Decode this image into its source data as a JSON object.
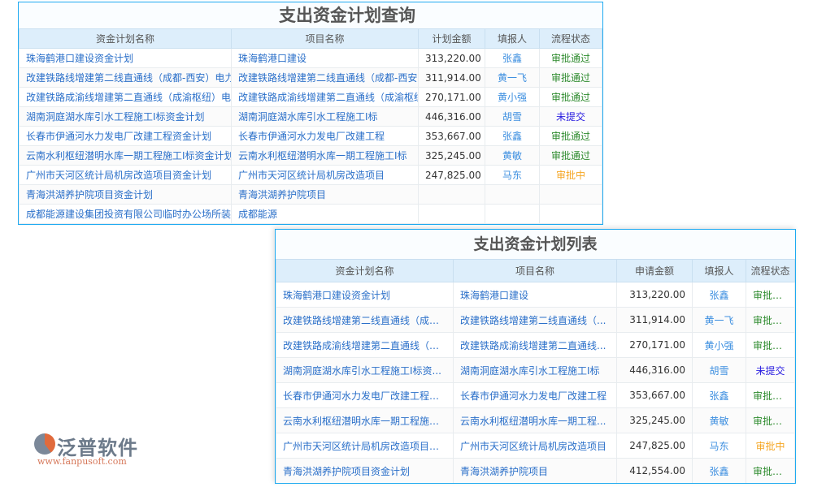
{
  "colors": {
    "border": "#1eaaf1",
    "header_bg": "#ddeefb",
    "link": "#2a6fc9",
    "approved": "#2e8b2e",
    "not_submitted": "#2a1ee0",
    "pending": "#f5a623"
  },
  "query": {
    "title": "支出资金计划查询",
    "columns": [
      "资金计划名称",
      "项目名称",
      "计划金额",
      "填报人",
      "流程状态"
    ],
    "rows": [
      [
        "珠海鹤港口建设资金计划",
        "珠海鹤港口建设",
        "313,220.00",
        "张鑫",
        "审批通过"
      ],
      [
        "改建铁路线增建第二线直通线（成都-西安）电力",
        "改建铁路线增建第二线直通线（成都-西安）",
        "311,914.00",
        "黄一飞",
        "审批通过"
      ],
      [
        "改建铁路成渝线增建第二直通线（成渝枢纽）电",
        "改建铁路成渝线增建第二直通线（成渝枢纽）",
        "270,171.00",
        "黄小强",
        "审批通过"
      ],
      [
        "湖南洞庭湖水库引水工程施工I标资金计划",
        "湖南洞庭湖水库引水工程施工I标",
        "446,316.00",
        "胡雪",
        "未提交"
      ],
      [
        "长春市伊通河水力发电厂改建工程资金计划",
        "长春市伊通河水力发电厂改建工程",
        "353,667.00",
        "张鑫",
        "审批通过"
      ],
      [
        "云南水利枢纽潜明水库一期工程施工I标资金计划",
        "云南水利枢纽潜明水库一期工程施工I标",
        "325,245.00",
        "黄敏",
        "审批通过"
      ],
      [
        "广州市天河区统计局机房改造项目资金计划",
        "广州市天河区统计局机房改造项目",
        "247,825.00",
        "马东",
        "审批中"
      ],
      [
        "青海洪湖养护院项目资金计划",
        "青海洪湖养护院项目",
        "",
        "",
        ""
      ],
      [
        "成都能源建设集团投资有限公司临时办公场所装",
        "成都能源",
        "",
        "",
        ""
      ]
    ]
  },
  "list": {
    "title": "支出资金计划列表",
    "columns": [
      "资金计划名称",
      "项目名称",
      "申请金额",
      "填报人",
      "流程状态"
    ],
    "rows": [
      [
        "珠海鹤港口建设资金计划",
        "珠海鹤港口建设",
        "313,220.00",
        "张鑫",
        "审批通过"
      ],
      [
        "改建铁路线增建第二线直通线（成都...",
        "改建铁路线增建第二线直通线（...",
        "311,914.00",
        "黄一飞",
        "审批通过"
      ],
      [
        "改建铁路成渝线增建第二直通线（成...",
        "改建铁路成渝线增建第二直通线...",
        "270,171.00",
        "黄小强",
        "审批通过"
      ],
      [
        "湖南洞庭湖水库引水工程施工I标资...",
        "湖南洞庭湖水库引水工程施工I标",
        "446,316.00",
        "胡雪",
        "未提交"
      ],
      [
        "长春市伊通河水力发电厂改建工程资...",
        "长春市伊通河水力发电厂改建工程",
        "353,667.00",
        "张鑫",
        "审批通过"
      ],
      [
        "云南水利枢纽潜明水库一期工程施工...",
        "云南水利枢纽潜明水库一期工程...",
        "325,245.00",
        "黄敏",
        "审批通过"
      ],
      [
        "广州市天河区统计局机房改造项目资...",
        "广州市天河区统计局机房改造项目",
        "247,825.00",
        "马东",
        "审批中"
      ],
      [
        "青海洪湖养护院项目资金计划",
        "青海洪湖养护院项目",
        "412,554.00",
        "张鑫",
        "审批通过"
      ]
    ]
  },
  "watermark": {
    "name": "泛普软件",
    "url": "www.fanpusoft.com"
  }
}
